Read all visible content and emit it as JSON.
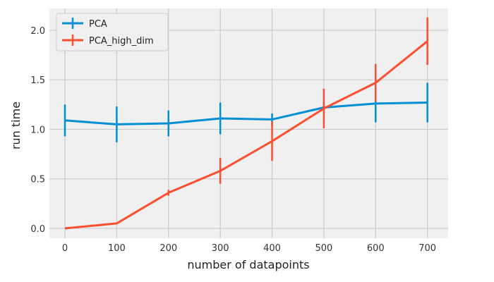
{
  "chart_data": {
    "type": "line",
    "title": "",
    "xlabel": "number of datapoints",
    "ylabel": "run time",
    "x": [
      0,
      100,
      200,
      300,
      400,
      500,
      600,
      700
    ],
    "xticks": [
      "0",
      "100",
      "200",
      "300",
      "400",
      "500",
      "600",
      "700"
    ],
    "yticks": [
      "0.0",
      "0.5",
      "1.0",
      "1.5",
      "2.0"
    ],
    "xlim": [
      -30,
      740
    ],
    "ylim": [
      -0.1,
      2.22
    ],
    "grid": true,
    "legend_position": "top-left",
    "series": [
      {
        "name": "PCA",
        "color": "#008fd5",
        "values": [
          1.09,
          1.05,
          1.06,
          1.11,
          1.1,
          1.22,
          1.26,
          1.27
        ],
        "errors": [
          0.16,
          0.18,
          0.13,
          0.16,
          0.06,
          0.06,
          0.19,
          0.2
        ]
      },
      {
        "name": "PCA_high_dim",
        "color": "#fc4f30",
        "values": [
          0.0,
          0.05,
          0.36,
          0.58,
          0.88,
          1.21,
          1.47,
          1.89
        ],
        "errors": [
          0.0,
          0.0,
          0.03,
          0.13,
          0.2,
          0.2,
          0.19,
          0.24
        ]
      }
    ]
  }
}
